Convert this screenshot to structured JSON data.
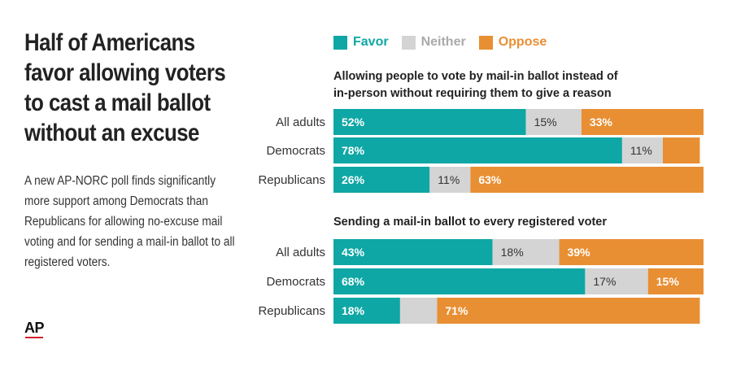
{
  "headline": "Half of Americans favor allowing voters to cast a mail ballot without an excuse",
  "description": "A new AP-NORC poll finds significantly more support among Democrats than Republicans for allowing no-excuse mail voting and for sending a mail-in ballot to all registered voters.",
  "logo": "AP",
  "legend": [
    {
      "label": "Favor",
      "color": "#0fa7a5"
    },
    {
      "label": "Neither",
      "color": "#d4d4d4"
    },
    {
      "label": "Oppose",
      "color": "#e88f33"
    }
  ],
  "chart_data": [
    {
      "type": "bar",
      "stacked": true,
      "orientation": "horizontal",
      "title": "Allowing people to vote by mail-in ballot instead of in-person without requiring them to give a reason",
      "categories": [
        "All adults",
        "Democrats",
        "Republicans"
      ],
      "series": [
        {
          "name": "Favor",
          "values": [
            52,
            78,
            26
          ],
          "labels": [
            "52%",
            "78%",
            "26%"
          ]
        },
        {
          "name": "Neither",
          "values": [
            15,
            11,
            11
          ],
          "labels": [
            "15%",
            "11%",
            "11%"
          ]
        },
        {
          "name": "Oppose",
          "values": [
            33,
            10,
            63
          ],
          "labels": [
            "33%",
            "",
            "63%"
          ]
        }
      ],
      "xlim": [
        0,
        100
      ]
    },
    {
      "type": "bar",
      "stacked": true,
      "orientation": "horizontal",
      "title": "Sending a mail-in ballot to every registered voter",
      "categories": [
        "All adults",
        "Democrats",
        "Republicans"
      ],
      "series": [
        {
          "name": "Favor",
          "values": [
            43,
            68,
            18
          ],
          "labels": [
            "43%",
            "68%",
            "18%"
          ]
        },
        {
          "name": "Neither",
          "values": [
            18,
            17,
            10
          ],
          "labels": [
            "18%",
            "17%",
            ""
          ]
        },
        {
          "name": "Oppose",
          "values": [
            39,
            15,
            71
          ],
          "labels": [
            "39%",
            "15%",
            "71%"
          ]
        }
      ],
      "xlim": [
        0,
        100
      ]
    }
  ]
}
